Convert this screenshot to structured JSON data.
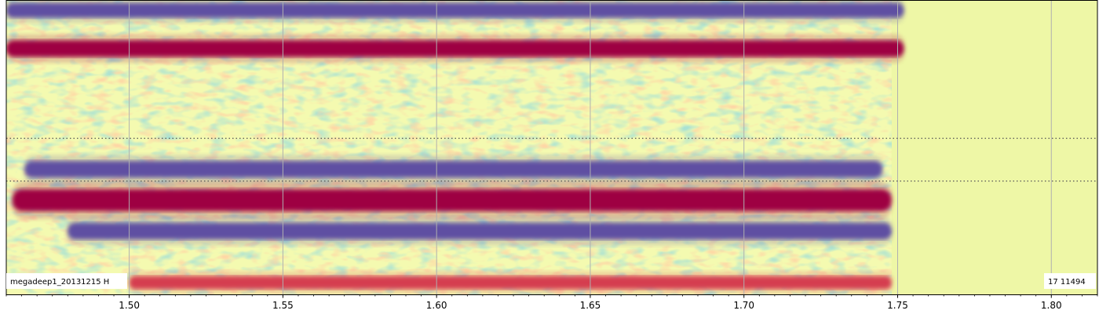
{
  "chart_data": {
    "type": "heatmap",
    "title": "",
    "xlabel": "",
    "ylabel": "",
    "xlim": [
      1.46,
      1.815
    ],
    "x_ticks": [
      1.5,
      1.55,
      1.6,
      1.65,
      1.7,
      1.75,
      1.8
    ],
    "x_tick_labels": [
      "1.50",
      "1.55",
      "1.60",
      "1.65",
      "1.70",
      "1.75",
      "1.80"
    ],
    "minor_tick_step": 0.005,
    "grid": true,
    "colormap": "Spectral",
    "data_extent_x": 1.748,
    "fill_color": "#eef7a6",
    "reference_lines": [
      0.47,
      0.615
    ],
    "bands": [
      {
        "y": 0.035,
        "half_width": 0.025,
        "color": "#5e4fa2",
        "x_start": 1.46,
        "x_end": 1.752
      },
      {
        "y": 0.165,
        "half_width": 0.028,
        "color": "#9e0142",
        "x_start": 1.46,
        "x_end": 1.752
      },
      {
        "y": 0.575,
        "half_width": 0.028,
        "color": "#5e4fa2",
        "x_start": 1.466,
        "x_end": 1.745
      },
      {
        "y": 0.68,
        "half_width": 0.037,
        "color": "#9e0142",
        "x_start": 1.462,
        "x_end": 1.748
      },
      {
        "y": 0.785,
        "half_width": 0.028,
        "color": "#5e4fa2",
        "x_start": 1.48,
        "x_end": 1.748
      },
      {
        "y": 0.96,
        "half_width": 0.022,
        "color": "#d53e4f",
        "x_start": 1.5,
        "x_end": 1.748
      }
    ],
    "left_label": "megadeep1_20131215  H",
    "right_label": "17  11494"
  }
}
